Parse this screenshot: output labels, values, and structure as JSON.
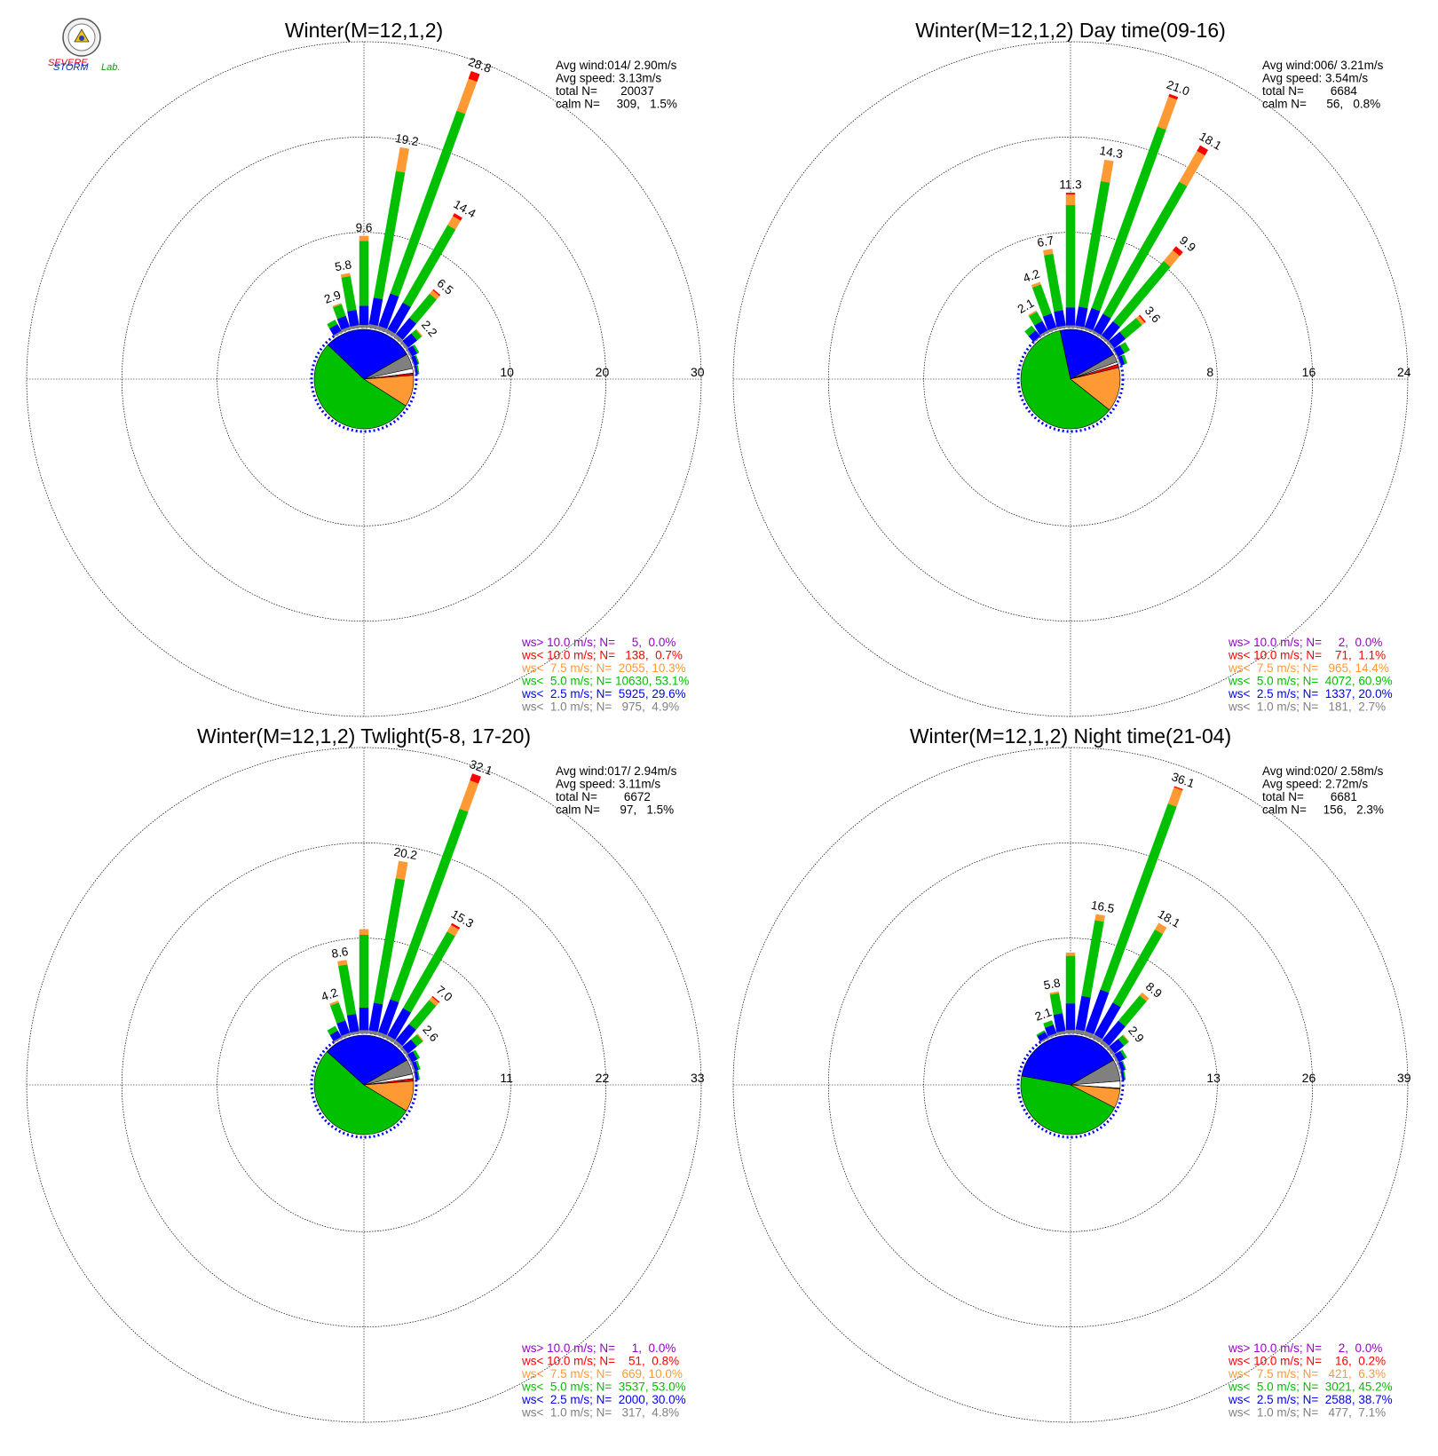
{
  "logo": {
    "word1": "SEVERE",
    "word2": "STORM",
    "word3": "Lab."
  },
  "colors": {
    "grey": "#808080",
    "blue": "#0000ff",
    "green": "#00c000",
    "orange": "#ff9933",
    "red": "#ff0000",
    "purple": "#9900cc",
    "calm": "#ffffff"
  },
  "panels": [
    {
      "title": "Winter(M=12,1,2)",
      "stats": [
        "Avg wind:014/ 2.90m/s",
        "Avg speed: 3.13m/s",
        "total N=       20037",
        "calm N=     309,   1.5%"
      ],
      "legend": [
        {
          "text": "ws> 10.0 m/s; N=     5,  0.0%",
          "color": "#9900cc"
        },
        {
          "text": "ws< 10.0 m/s; N=   138,  0.7%",
          "color": "#ff0000"
        },
        {
          "text": "ws<  7.5 m/s; N=  2055, 10.3%",
          "color": "#ff9933"
        },
        {
          "text": "ws<  5.0 m/s; N= 10630, 53.1%",
          "color": "#00c000"
        },
        {
          "text": "ws<  2.5 m/s; N=  5925, 29.6%",
          "color": "#0000ff"
        },
        {
          "text": "ws<  1.0 m/s; N=   975,  4.9%",
          "color": "#808080"
        }
      ],
      "ring_labels": [
        "10",
        "20",
        "30"
      ]
    },
    {
      "title": "Winter(M=12,1,2) Day time(09-16)",
      "stats": [
        "Avg wind:006/ 3.21m/s",
        "Avg speed: 3.54m/s",
        "total N=        6684",
        "calm N=      56,   0.8%"
      ],
      "legend": [
        {
          "text": "ws> 10.0 m/s; N=     2,  0.0%",
          "color": "#9900cc"
        },
        {
          "text": "ws< 10.0 m/s; N=    71,  1.1%",
          "color": "#ff0000"
        },
        {
          "text": "ws<  7.5 m/s; N=   965, 14.4%",
          "color": "#ff9933"
        },
        {
          "text": "ws<  5.0 m/s; N=  4072, 60.9%",
          "color": "#00c000"
        },
        {
          "text": "ws<  2.5 m/s; N=  1337, 20.0%",
          "color": "#0000ff"
        },
        {
          "text": "ws<  1.0 m/s; N=   181,  2.7%",
          "color": "#808080"
        }
      ],
      "ring_labels": [
        "8",
        "16",
        "24"
      ]
    },
    {
      "title": "Winter(M=12,1,2) Twlight(5-8, 17-20)",
      "stats": [
        "Avg wind:017/ 2.94m/s",
        "Avg speed: 3.11m/s",
        "total N=        6672",
        "calm N=      97,   1.5%"
      ],
      "legend": [
        {
          "text": "ws> 10.0 m/s; N=     1,  0.0%",
          "color": "#9900cc"
        },
        {
          "text": "ws< 10.0 m/s; N=    51,  0.8%",
          "color": "#ff0000"
        },
        {
          "text": "ws<  7.5 m/s; N=   669, 10.0%",
          "color": "#ff9933"
        },
        {
          "text": "ws<  5.0 m/s; N=  3537, 53.0%",
          "color": "#00c000"
        },
        {
          "text": "ws<  2.5 m/s; N=  2000, 30.0%",
          "color": "#0000ff"
        },
        {
          "text": "ws<  1.0 m/s; N=   317,  4.8%",
          "color": "#808080"
        }
      ],
      "ring_labels": [
        "11",
        "22",
        "33"
      ]
    },
    {
      "title": "Winter(M=12,1,2) Night time(21-04)",
      "stats": [
        "Avg wind:020/ 2.58m/s",
        "Avg speed: 2.72m/s",
        "total N=        6681",
        "calm N=     156,   2.3%"
      ],
      "legend": [
        {
          "text": "ws> 10.0 m/s; N=     2,  0.0%",
          "color": "#9900cc"
        },
        {
          "text": "ws< 10.0 m/s; N=    16,  0.2%",
          "color": "#ff0000"
        },
        {
          "text": "ws<  7.5 m/s; N=   421,  6.3%",
          "color": "#ff9933"
        },
        {
          "text": "ws<  5.0 m/s; N=  3021, 45.2%",
          "color": "#00c000"
        },
        {
          "text": "ws<  2.5 m/s; N=  2588, 38.7%",
          "color": "#0000ff"
        },
        {
          "text": "ws<  1.0 m/s; N=   477,  7.1%",
          "color": "#808080"
        }
      ],
      "ring_labels": [
        "13",
        "26",
        "39"
      ]
    }
  ],
  "chart_data": [
    {
      "type": "polar-bar",
      "title": "Winter(M=12,1,2)",
      "rmax": 30,
      "directions_deg": [
        330,
        340,
        350,
        0,
        10,
        20,
        30,
        40,
        50,
        60,
        70,
        80
      ],
      "totals": [
        1.5,
        2.9,
        5.8,
        9.6,
        19.2,
        28.8,
        14.4,
        6.5,
        2.2,
        1.0,
        0.6,
        0.4
      ],
      "labels": [
        "",
        "2.9",
        "5.8",
        "9.6",
        "19.2",
        "28.8",
        "14.4",
        "6.5",
        "2.2",
        "",
        "",
        ""
      ],
      "segments": {
        "lt1.0": [
          0.2,
          0.3,
          0.3,
          0.3,
          0.4,
          0.4,
          0.4,
          0.4,
          0.3,
          0.2,
          0.1,
          0.1
        ],
        "lt2.5": [
          0.8,
          1.2,
          1.6,
          2.0,
          2.8,
          3.6,
          3.2,
          2.2,
          1.2,
          0.6,
          0.4,
          0.2
        ],
        "lt5.0": [
          0.5,
          1.3,
          3.6,
          6.8,
          13.5,
          20.4,
          9.4,
          3.3,
          0.6,
          0.2,
          0.1,
          0.1
        ],
        "lt7.5": [
          0.0,
          0.1,
          0.3,
          0.5,
          2.5,
          3.6,
          1.1,
          0.5,
          0.1,
          0.0,
          0.0,
          0.0
        ],
        "lt10.0": [
          0.0,
          0.0,
          0.0,
          0.0,
          0.0,
          0.8,
          0.3,
          0.1,
          0.0,
          0.0,
          0.0,
          0.0
        ]
      },
      "pie_percent": {
        "lt1.0": 4.9,
        "lt2.5": 29.6,
        "lt5.0": 53.1,
        "lt7.5": 10.3,
        "lt10.0": 0.7,
        "calm": 1.5
      }
    },
    {
      "type": "polar-bar",
      "title": "Winter(M=12,1,2) Day time(09-16)",
      "rmax": 24,
      "directions_deg": [
        320,
        330,
        340,
        350,
        0,
        10,
        20,
        30,
        40,
        50,
        60,
        70
      ],
      "totals": [
        1.2,
        2.1,
        4.2,
        6.7,
        11.3,
        14.3,
        21.0,
        18.1,
        9.9,
        3.6,
        1.2,
        0.6
      ],
      "labels": [
        "",
        "2.1",
        "4.2",
        "6.7",
        "11.3",
        "14.3",
        "21.0",
        "18.1",
        "9.9",
        "3.6",
        "",
        ""
      ],
      "segments": {
        "lt1.0": [
          0.1,
          0.2,
          0.2,
          0.2,
          0.2,
          0.2,
          0.2,
          0.2,
          0.2,
          0.2,
          0.1,
          0.1
        ],
        "lt2.5": [
          0.6,
          0.9,
          1.2,
          1.3,
          1.5,
          1.6,
          1.7,
          1.6,
          1.5,
          1.2,
          0.6,
          0.3
        ],
        "lt5.0": [
          0.5,
          0.9,
          2.6,
          4.8,
          8.6,
          10.7,
          16.2,
          12.8,
          6.6,
          1.8,
          0.5,
          0.2
        ],
        "lt7.5": [
          0.0,
          0.1,
          0.2,
          0.4,
          0.9,
          1.8,
          2.7,
          3.0,
          1.2,
          0.3,
          0.0,
          0.0
        ],
        "lt10.0": [
          0.0,
          0.0,
          0.0,
          0.0,
          0.1,
          0.0,
          0.2,
          0.5,
          0.4,
          0.1,
          0.0,
          0.0
        ]
      },
      "pie_percent": {
        "lt1.0": 2.7,
        "lt2.5": 20.0,
        "lt5.0": 60.9,
        "lt7.5": 14.4,
        "lt10.0": 1.1,
        "calm": 0.8
      }
    },
    {
      "type": "polar-bar",
      "title": "Winter(M=12,1,2) Twlight(5-8, 17-20)",
      "rmax": 33,
      "directions_deg": [
        330,
        340,
        350,
        0,
        10,
        20,
        30,
        40,
        50,
        60,
        70,
        80
      ],
      "totals": [
        1.6,
        4.2,
        8.6,
        12.0,
        20.2,
        32.1,
        15.3,
        7.0,
        2.6,
        1.2,
        0.8,
        0.5
      ],
      "labels": [
        "",
        "4.2",
        "8.6",
        "",
        "20.2",
        "32.1",
        "15.3",
        "7.0",
        "2.6",
        "",
        "",
        ""
      ],
      "segments": {
        "lt1.0": [
          0.2,
          0.3,
          0.3,
          0.4,
          0.4,
          0.4,
          0.4,
          0.4,
          0.3,
          0.2,
          0.2,
          0.1
        ],
        "lt2.5": [
          0.8,
          1.5,
          2.0,
          2.6,
          3.2,
          4.0,
          3.6,
          2.4,
          1.3,
          0.7,
          0.4,
          0.3
        ],
        "lt5.0": [
          0.6,
          2.2,
          5.8,
          8.4,
          14.6,
          23.4,
          10.2,
          3.6,
          0.9,
          0.3,
          0.2,
          0.1
        ],
        "lt7.5": [
          0.0,
          0.2,
          0.5,
          0.6,
          2.0,
          3.5,
          0.9,
          0.5,
          0.1,
          0.0,
          0.0,
          0.0
        ],
        "lt10.0": [
          0.0,
          0.0,
          0.0,
          0.0,
          0.0,
          0.8,
          0.2,
          0.1,
          0.0,
          0.0,
          0.0,
          0.0
        ]
      },
      "pie_percent": {
        "lt1.0": 4.8,
        "lt2.5": 30.0,
        "lt5.0": 53.0,
        "lt7.5": 10.0,
        "lt10.0": 0.8,
        "calm": 1.5
      }
    },
    {
      "type": "polar-bar",
      "title": "Winter(M=12,1,2) Night time(21-04)",
      "rmax": 39,
      "directions_deg": [
        330,
        340,
        350,
        0,
        10,
        20,
        30,
        40,
        50,
        60,
        70,
        80
      ],
      "totals": [
        1.2,
        2.1,
        5.8,
        11.0,
        16.5,
        36.1,
        18.1,
        8.9,
        2.9,
        1.5,
        0.8,
        0.5
      ],
      "labels": [
        "",
        "2.1",
        "5.8",
        "",
        "16.5",
        "36.1",
        "18.1",
        "8.9",
        "2.9",
        "",
        "",
        ""
      ],
      "segments": {
        "lt1.0": [
          0.2,
          0.3,
          0.4,
          0.5,
          0.6,
          0.6,
          0.6,
          0.5,
          0.4,
          0.3,
          0.2,
          0.1
        ],
        "lt2.5": [
          0.8,
          1.2,
          2.4,
          3.6,
          4.6,
          6.0,
          5.0,
          3.4,
          1.6,
          0.9,
          0.5,
          0.3
        ],
        "lt5.0": [
          0.2,
          0.6,
          2.8,
          6.5,
          10.5,
          27.0,
          11.5,
          4.5,
          0.8,
          0.3,
          0.1,
          0.1
        ],
        "lt7.5": [
          0.0,
          0.0,
          0.2,
          0.4,
          0.8,
          2.4,
          1.0,
          0.5,
          0.1,
          0.0,
          0.0,
          0.0
        ],
        "lt10.0": [
          0.0,
          0.0,
          0.0,
          0.0,
          0.0,
          0.1,
          0.0,
          0.0,
          0.0,
          0.0,
          0.0,
          0.0
        ]
      },
      "pie_percent": {
        "lt1.0": 7.1,
        "lt2.5": 38.7,
        "lt5.0": 45.2,
        "lt7.5": 6.3,
        "lt10.0": 0.2,
        "calm": 2.3
      }
    }
  ]
}
